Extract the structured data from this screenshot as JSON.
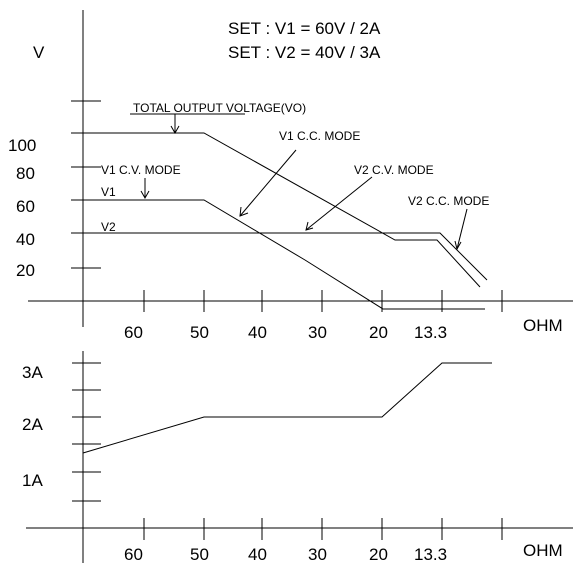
{
  "settings": {
    "line1": "SET : V1 = 60V / 2A",
    "line2": "SET : V2 = 40V / 3A"
  },
  "voltage_panel": {
    "y_axis_label": "V",
    "x_axis_label": "OHM",
    "y_ticks": [
      "100",
      "80",
      "60",
      "40",
      "20"
    ],
    "x_ticks": [
      "60",
      "50",
      "40",
      "30",
      "20",
      "13.3"
    ],
    "labels": {
      "vo": "TOTAL OUTPUT VOLTAGE(VO)",
      "v1_cc": "V1 C.C. MODE",
      "v1_cv": "V1 C.V. MODE",
      "v2_cv": "V2 C.V. MODE",
      "v2_cc": "V2 C.C. MODE",
      "v1": "V1",
      "v2": "V2"
    }
  },
  "current_panel": {
    "y_ticks": [
      "3A",
      "2A",
      "1A"
    ],
    "x_ticks": [
      "60",
      "50",
      "40",
      "30",
      "20",
      "13.3"
    ],
    "x_axis_label": "OHM"
  }
}
